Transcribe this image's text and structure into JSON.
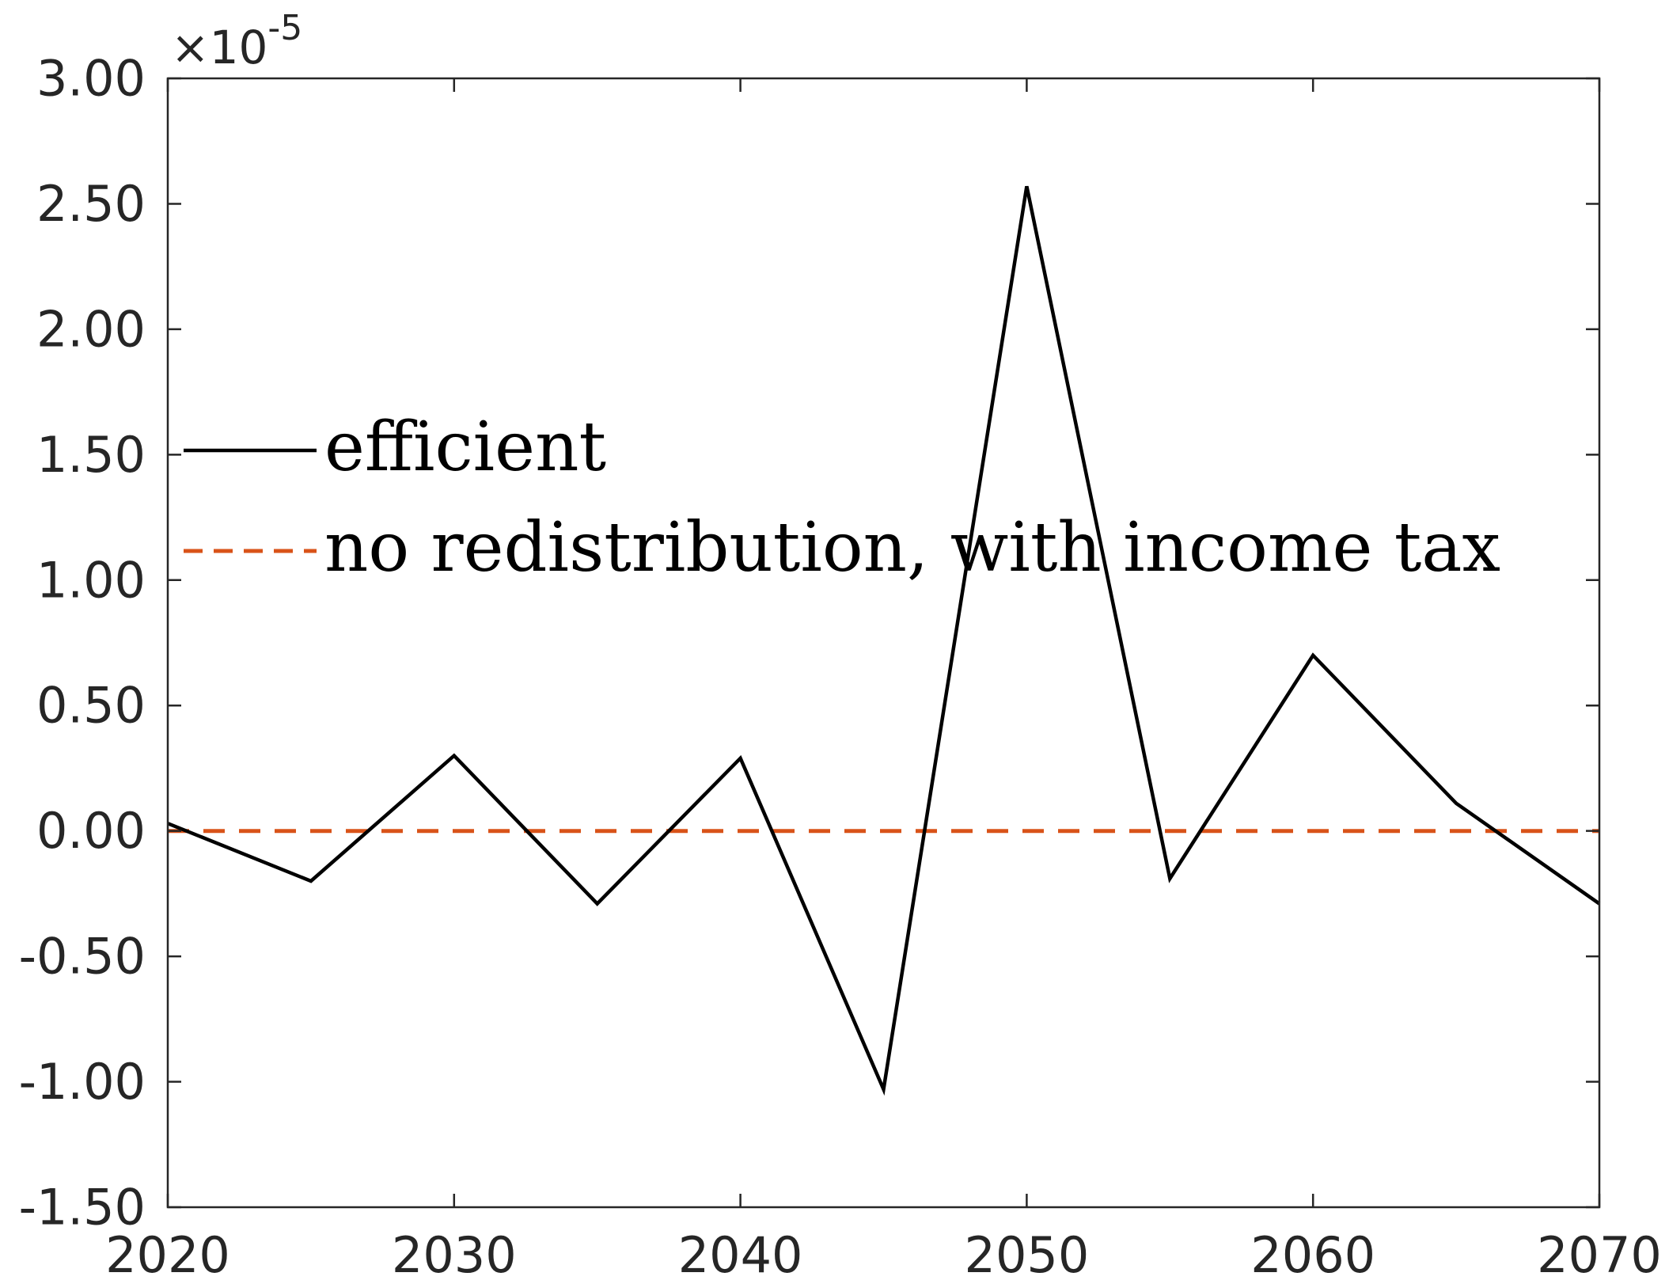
{
  "chart_data": {
    "type": "line",
    "title": "",
    "xlabel": "",
    "ylabel": "",
    "y_exponent_label": "×10",
    "y_exponent_power": "-5",
    "x_ticks": [
      "2020",
      "2030",
      "2040",
      "2050",
      "2060",
      "2070"
    ],
    "y_ticks": [
      "3.00",
      "2.50",
      "2.00",
      "1.50",
      "1.00",
      "0.50",
      "0.00",
      "-0.50",
      "-1.00",
      "-1.50"
    ],
    "xlim": [
      2020,
      2070
    ],
    "ylim": [
      -1.5,
      3.0
    ],
    "y_scale_factor": 1e-05,
    "grid": false,
    "legend_position": "center-left",
    "x": [
      2020,
      2025,
      2030,
      2035,
      2040,
      2045,
      2050,
      2055,
      2060,
      2065,
      2070
    ],
    "series": [
      {
        "name": "efficient",
        "color": "#000000",
        "style": "solid",
        "values": [
          0.03,
          -0.2,
          0.3,
          -0.29,
          0.29,
          -1.03,
          2.57,
          -0.19,
          0.7,
          0.11,
          -0.29
        ]
      },
      {
        "name": "no redistribution, with income tax",
        "color": "#D95319",
        "style": "dashed",
        "values": [
          0.0,
          0.0,
          0.0,
          0.0,
          0.0,
          0.0,
          0.0,
          0.0,
          0.0,
          0.0,
          0.0
        ]
      }
    ]
  }
}
